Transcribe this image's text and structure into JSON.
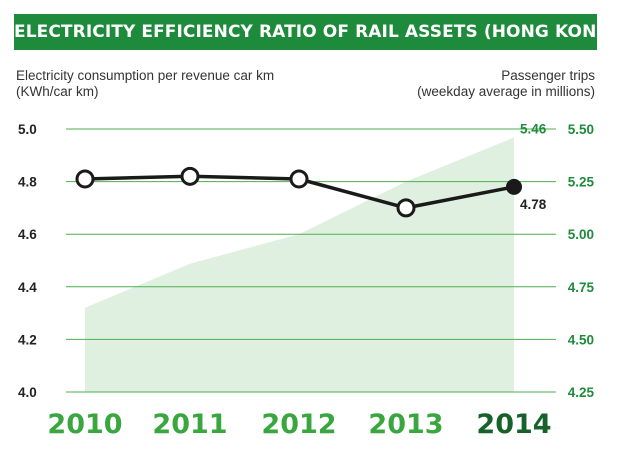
{
  "title": "ELECTRICITY EFFICIENCY RATIO OF RAIL ASSETS (HONG KONG)",
  "left_axis_label": [
    "Electricity consumption per revenue car km",
    "(KWh/car km)"
  ],
  "right_axis_label": [
    "Passenger trips",
    "(weekday average in millions)"
  ],
  "colors": {
    "banner": "#1e8a3b",
    "area": "#dff0e0",
    "line": "#1a1a1a",
    "grid": "#4caf50",
    "year_light": "#3aa63f",
    "year_dark": "#17622b",
    "right_ticks": "#1e8a3b"
  },
  "chart_data": {
    "type": "line",
    "categories": [
      "2010",
      "2011",
      "2012",
      "2013",
      "2014"
    ],
    "series": [
      {
        "axis": "left",
        "render": "line",
        "values": [
          4.81,
          4.82,
          4.81,
          4.7,
          4.78
        ],
        "data_labels": [
          "",
          "",
          "",
          "",
          "4.78"
        ]
      },
      {
        "axis": "right",
        "render": "area",
        "values": [
          4.65,
          4.86,
          5.0,
          5.25,
          5.46
        ],
        "data_labels": [
          "",
          "",
          "",
          "",
          "5.46"
        ]
      }
    ],
    "left_axis": {
      "range": [
        4.0,
        5.0
      ],
      "ticks": [
        "4.0",
        "4.2",
        "4.4",
        "4.6",
        "4.8",
        "5.0"
      ]
    },
    "right_axis": {
      "range": [
        4.25,
        5.5
      ],
      "ticks": [
        "4.25",
        "4.50",
        "4.75",
        "5.00",
        "5.25",
        "5.50"
      ]
    },
    "grid": true,
    "highlight_category": "2014"
  }
}
